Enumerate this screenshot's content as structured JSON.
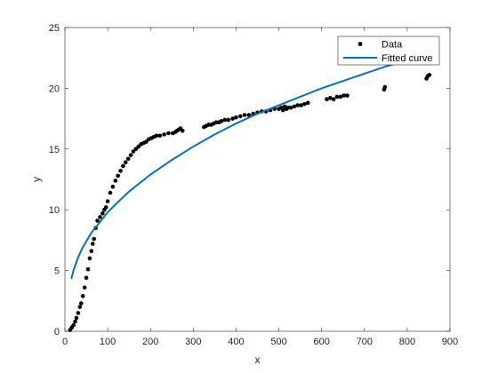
{
  "chart_data": {
    "type": "scatter",
    "xlabel": "x",
    "ylabel": "y",
    "xlim": [
      0,
      900
    ],
    "ylim": [
      0,
      25
    ],
    "xticks": [
      0,
      100,
      200,
      300,
      400,
      500,
      600,
      700,
      800,
      900
    ],
    "yticks": [
      0,
      5,
      10,
      15,
      20,
      25
    ],
    "grid": false,
    "legend_position": "top-right",
    "colors": {
      "data": "#000000",
      "fit": "#0072BD"
    },
    "series": [
      {
        "name": "Data",
        "kind": "scatter",
        "points": [
          [
            12,
            0.1
          ],
          [
            16,
            0.3
          ],
          [
            20,
            0.5
          ],
          [
            24,
            0.8
          ],
          [
            27,
            1.1
          ],
          [
            31,
            1.5
          ],
          [
            35,
            2.0
          ],
          [
            38,
            2.3
          ],
          [
            42,
            2.9
          ],
          [
            46,
            3.6
          ],
          [
            50,
            4.4
          ],
          [
            54,
            5.1
          ],
          [
            58,
            6.0
          ],
          [
            62,
            6.6
          ],
          [
            65,
            7.2
          ],
          [
            68,
            7.6
          ],
          [
            72,
            8.5
          ],
          [
            76,
            9.1
          ],
          [
            82,
            9.4
          ],
          [
            88,
            9.7
          ],
          [
            92,
            10.0
          ],
          [
            96,
            10.2
          ],
          [
            100,
            10.7
          ],
          [
            106,
            11.4
          ],
          [
            112,
            11.9
          ],
          [
            118,
            12.4
          ],
          [
            124,
            12.8
          ],
          [
            130,
            13.2
          ],
          [
            136,
            13.6
          ],
          [
            142,
            13.9
          ],
          [
            148,
            14.2
          ],
          [
            154,
            14.5
          ],
          [
            160,
            14.8
          ],
          [
            166,
            15.0
          ],
          [
            172,
            15.2
          ],
          [
            178,
            15.4
          ],
          [
            184,
            15.5
          ],
          [
            190,
            15.6
          ],
          [
            196,
            15.8
          ],
          [
            202,
            15.9
          ],
          [
            208,
            16.0
          ],
          [
            214,
            16.1
          ],
          [
            222,
            16.1
          ],
          [
            232,
            16.2
          ],
          [
            242,
            16.3
          ],
          [
            252,
            16.3
          ],
          [
            258,
            16.4
          ],
          [
            262,
            16.5
          ],
          [
            266,
            16.6
          ],
          [
            270,
            16.7
          ],
          [
            275,
            16.5
          ],
          [
            325,
            16.8
          ],
          [
            330,
            16.9
          ],
          [
            336,
            17.0
          ],
          [
            342,
            17.0
          ],
          [
            348,
            17.1
          ],
          [
            354,
            17.2
          ],
          [
            360,
            17.2
          ],
          [
            366,
            17.3
          ],
          [
            374,
            17.4
          ],
          [
            382,
            17.4
          ],
          [
            392,
            17.5
          ],
          [
            400,
            17.6
          ],
          [
            410,
            17.7
          ],
          [
            420,
            17.8
          ],
          [
            430,
            17.8
          ],
          [
            440,
            17.9
          ],
          [
            450,
            18.0
          ],
          [
            460,
            18.1
          ],
          [
            470,
            18.1
          ],
          [
            480,
            18.2
          ],
          [
            490,
            18.3
          ],
          [
            500,
            18.3
          ],
          [
            506,
            18.4
          ],
          [
            510,
            18.2
          ],
          [
            514,
            18.5
          ],
          [
            518,
            18.3
          ],
          [
            522,
            18.4
          ],
          [
            528,
            18.4
          ],
          [
            536,
            18.5
          ],
          [
            544,
            18.6
          ],
          [
            552,
            18.6
          ],
          [
            560,
            18.7
          ],
          [
            568,
            18.8
          ],
          [
            612,
            19.1
          ],
          [
            620,
            19.2
          ],
          [
            628,
            19.1
          ],
          [
            636,
            19.3
          ],
          [
            644,
            19.3
          ],
          [
            652,
            19.4
          ],
          [
            660,
            19.4
          ],
          [
            746,
            19.9
          ],
          [
            748,
            20.1
          ],
          [
            845,
            20.8
          ],
          [
            848,
            21.0
          ],
          [
            852,
            21.1
          ]
        ]
      },
      {
        "name": "Fitted curve",
        "kind": "line",
        "points": [
          [
            15,
            4.3
          ],
          [
            20,
            5.0
          ],
          [
            30,
            6.0
          ],
          [
            40,
            6.8
          ],
          [
            50,
            7.4
          ],
          [
            60,
            8.0
          ],
          [
            70,
            8.5
          ],
          [
            80,
            8.9
          ],
          [
            100,
            9.8
          ],
          [
            120,
            10.5
          ],
          [
            150,
            11.5
          ],
          [
            200,
            12.9
          ],
          [
            250,
            14.1
          ],
          [
            300,
            15.2
          ],
          [
            350,
            16.2
          ],
          [
            400,
            17.1
          ],
          [
            450,
            17.9
          ],
          [
            500,
            18.6
          ],
          [
            550,
            19.3
          ],
          [
            600,
            20.0
          ],
          [
            650,
            20.6
          ],
          [
            700,
            21.2
          ],
          [
            750,
            21.8
          ],
          [
            780,
            22.1
          ]
        ]
      }
    ]
  }
}
